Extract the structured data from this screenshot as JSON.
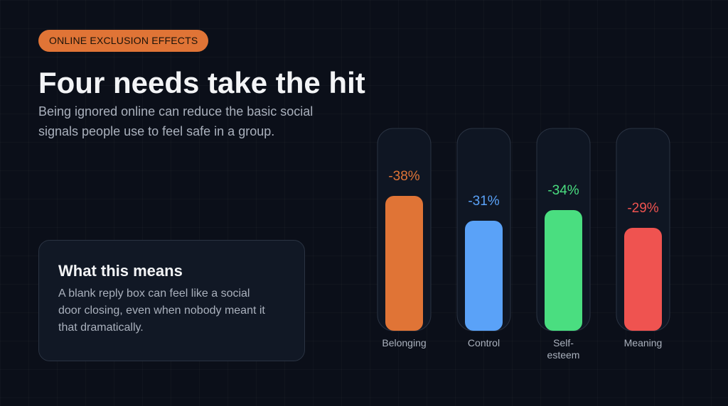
{
  "header": {
    "tag": "ONLINE EXCLUSION EFFECTS",
    "title": "Four needs take the hit",
    "subtitle": "Being ignored online can reduce the basic social signals people use to feel safe in a group."
  },
  "card": {
    "title": "What this means",
    "body": "A blank reply box can feel like a social door closing, even when nobody meant it that dramatically."
  },
  "colors": {
    "belonging": "#e07436",
    "control": "#5aa2f8",
    "self_esteem": "#4ade80",
    "meaning": "#ef5350"
  },
  "chart_data": {
    "type": "bar",
    "categories": [
      "Belonging",
      "Control",
      "Self-esteem",
      "Meaning"
    ],
    "category_lines": [
      [
        "Belonging"
      ],
      [
        "Control"
      ],
      [
        "Self-",
        "esteem"
      ],
      [
        "Meaning"
      ]
    ],
    "values": [
      -38,
      -31,
      -34,
      -29
    ],
    "value_labels": [
      "-38%",
      "-31%",
      "-34%",
      "-29%"
    ],
    "colors": [
      "#e07436",
      "#5aa2f8",
      "#4ade80",
      "#ef5350"
    ],
    "ylabel": "",
    "xlabel": "",
    "ylim": [
      0,
      -40
    ],
    "grid": false
  }
}
